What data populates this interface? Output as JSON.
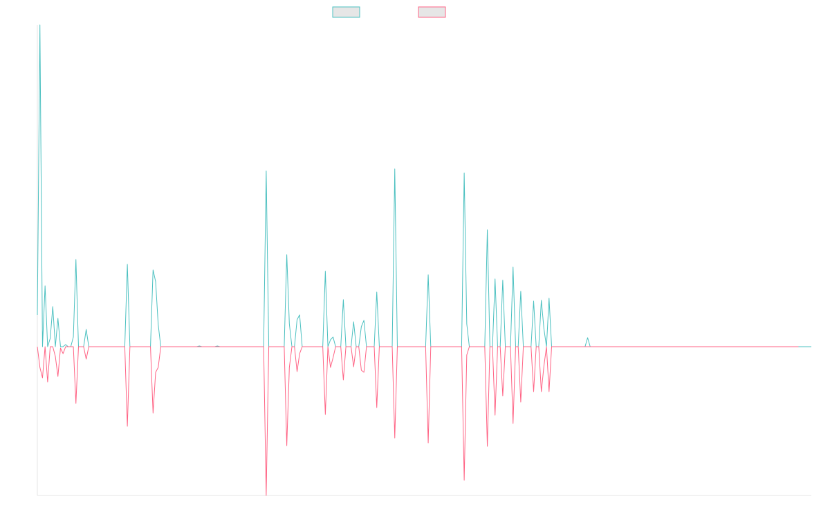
{
  "chart_data": {
    "type": "line",
    "title": "",
    "xlabel": "",
    "ylabel": "",
    "grid": false,
    "legend_position": "top-center",
    "ylim": [
      -215,
      465
    ],
    "series": [
      {
        "name": "",
        "color": "#4bc0c0",
        "fill": "#e6e6e6",
        "values": [
          46,
          465,
          0,
          88,
          0,
          12,
          58,
          0,
          41,
          0,
          0,
          3,
          0,
          0,
          14,
          126,
          0,
          0,
          0,
          25,
          0,
          0,
          0,
          0,
          0,
          0,
          0,
          0,
          0,
          0,
          0,
          0,
          0,
          0,
          0,
          119,
          0,
          0,
          0,
          0,
          0,
          0,
          0,
          0,
          0,
          111,
          94,
          32,
          0,
          0,
          0,
          0,
          0,
          0,
          0,
          0,
          0,
          0,
          0,
          0,
          0,
          0,
          0,
          1,
          0,
          0,
          0,
          0,
          0,
          0,
          1,
          0,
          0,
          0,
          0,
          0,
          0,
          0,
          0,
          0,
          0,
          0,
          0,
          0,
          0,
          0,
          0,
          0,
          0,
          254,
          0,
          0,
          0,
          0,
          0,
          0,
          0,
          133,
          33,
          0,
          0,
          39,
          46,
          0,
          0,
          0,
          0,
          0,
          0,
          0,
          0,
          0,
          109,
          0,
          10,
          14,
          0,
          0,
          0,
          68,
          0,
          0,
          0,
          36,
          0,
          0,
          29,
          38,
          0,
          0,
          0,
          0,
          79,
          0,
          0,
          0,
          0,
          0,
          0,
          257,
          0,
          0,
          0,
          0,
          0,
          0,
          0,
          0,
          0,
          0,
          0,
          0,
          104,
          0,
          0,
          0,
          0,
          0,
          0,
          0,
          0,
          0,
          0,
          0,
          0,
          0,
          251,
          33,
          0,
          0,
          0,
          0,
          0,
          0,
          0,
          169,
          0,
          0,
          98,
          0,
          0,
          96,
          0,
          0,
          0,
          115,
          0,
          0,
          80,
          0,
          0,
          0,
          0,
          66,
          0,
          0,
          67,
          26,
          0,
          70,
          0,
          0,
          0,
          0,
          0,
          0,
          0,
          0,
          0,
          0,
          0,
          0,
          0,
          0,
          13,
          0,
          0,
          0,
          0,
          0,
          0,
          0,
          0,
          0,
          0,
          0,
          0,
          0,
          0,
          0,
          0,
          0,
          0,
          0,
          0,
          0,
          0,
          0,
          0,
          0,
          0,
          0,
          0,
          0,
          0,
          0,
          0,
          0,
          0,
          0,
          0,
          0,
          0,
          0,
          0,
          0,
          0,
          0,
          0,
          0,
          0,
          0,
          0,
          0,
          0,
          0,
          0,
          0,
          0,
          0,
          0,
          0,
          0,
          0,
          0,
          0,
          0,
          0,
          0,
          0,
          0,
          0,
          0,
          0,
          0,
          0,
          0,
          0,
          0,
          0,
          0,
          0,
          0,
          0,
          0,
          0,
          0,
          0,
          0,
          0,
          0,
          0
        ]
      },
      {
        "name": "",
        "color": "#ff6384",
        "fill": "#e6e6e6",
        "values": [
          0,
          -30,
          -45,
          0,
          -51,
          0,
          0,
          -14,
          -43,
          -2,
          -10,
          0,
          0,
          0,
          0,
          -82,
          0,
          0,
          0,
          -18,
          0,
          0,
          0,
          0,
          0,
          0,
          0,
          0,
          0,
          0,
          0,
          0,
          0,
          0,
          0,
          -115,
          0,
          0,
          0,
          0,
          0,
          0,
          0,
          0,
          0,
          -96,
          -37,
          -30,
          0,
          0,
          0,
          0,
          0,
          0,
          0,
          0,
          0,
          0,
          0,
          0,
          0,
          0,
          0,
          0,
          0,
          0,
          0,
          0,
          0,
          0,
          0,
          0,
          0,
          0,
          0,
          0,
          0,
          0,
          0,
          0,
          0,
          0,
          0,
          0,
          0,
          0,
          0,
          0,
          0,
          -215,
          0,
          0,
          0,
          0,
          0,
          0,
          0,
          -143,
          -30,
          0,
          0,
          -36,
          -10,
          0,
          0,
          0,
          0,
          0,
          0,
          0,
          0,
          0,
          -98,
          0,
          -30,
          -16,
          0,
          0,
          0,
          -48,
          0,
          0,
          0,
          -29,
          0,
          0,
          -34,
          -37,
          0,
          0,
          0,
          0,
          -88,
          0,
          0,
          0,
          0,
          0,
          0,
          -132,
          0,
          0,
          0,
          0,
          0,
          0,
          0,
          0,
          0,
          0,
          0,
          0,
          -139,
          0,
          0,
          0,
          0,
          0,
          0,
          0,
          0,
          0,
          0,
          0,
          0,
          0,
          -193,
          -12,
          0,
          0,
          0,
          0,
          0,
          0,
          0,
          -144,
          0,
          0,
          -99,
          0,
          0,
          -71,
          0,
          0,
          0,
          -111,
          0,
          0,
          -80,
          0,
          0,
          0,
          0,
          -65,
          0,
          0,
          -65,
          -28,
          0,
          -65,
          0,
          0,
          0,
          0,
          0,
          0,
          0,
          0,
          0,
          0,
          0,
          0,
          0,
          0,
          0,
          0,
          0,
          0,
          0,
          0,
          0,
          0,
          0,
          0,
          0,
          0,
          0,
          0,
          0,
          0,
          0,
          0,
          0,
          0,
          0,
          0,
          0,
          0,
          0,
          0,
          0,
          0,
          0,
          0,
          0,
          0,
          0,
          0,
          0,
          0,
          0,
          0,
          0,
          0,
          0,
          0,
          0,
          0,
          0,
          0,
          0,
          0,
          0,
          0,
          0,
          0,
          0,
          0,
          0,
          0,
          0,
          0,
          0,
          0,
          0,
          0,
          0,
          0,
          0,
          0,
          0,
          0,
          0,
          0,
          0,
          0,
          0,
          0,
          0,
          0,
          0,
          0,
          0,
          0,
          0,
          0,
          0
        ]
      }
    ]
  }
}
